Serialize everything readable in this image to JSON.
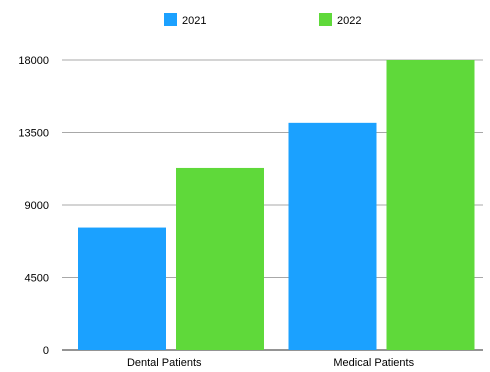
{
  "chart_data": {
    "type": "bar",
    "categories": [
      "Dental Patients",
      "Medical Patients"
    ],
    "series": [
      {
        "name": "2021",
        "color": "#1ba1ff",
        "values": [
          7600,
          14100
        ]
      },
      {
        "name": "2022",
        "color": "#5fd93a",
        "values": [
          11300,
          18000
        ]
      }
    ],
    "ylim": [
      0,
      18000
    ],
    "yticks": [
      "0",
      "4500",
      "9000",
      "13500",
      "18000"
    ],
    "ytick_values": [
      0,
      4500,
      9000,
      13500,
      18000
    ],
    "grid": true,
    "grid_color": "#a8a8a8",
    "legend": "top-center"
  }
}
